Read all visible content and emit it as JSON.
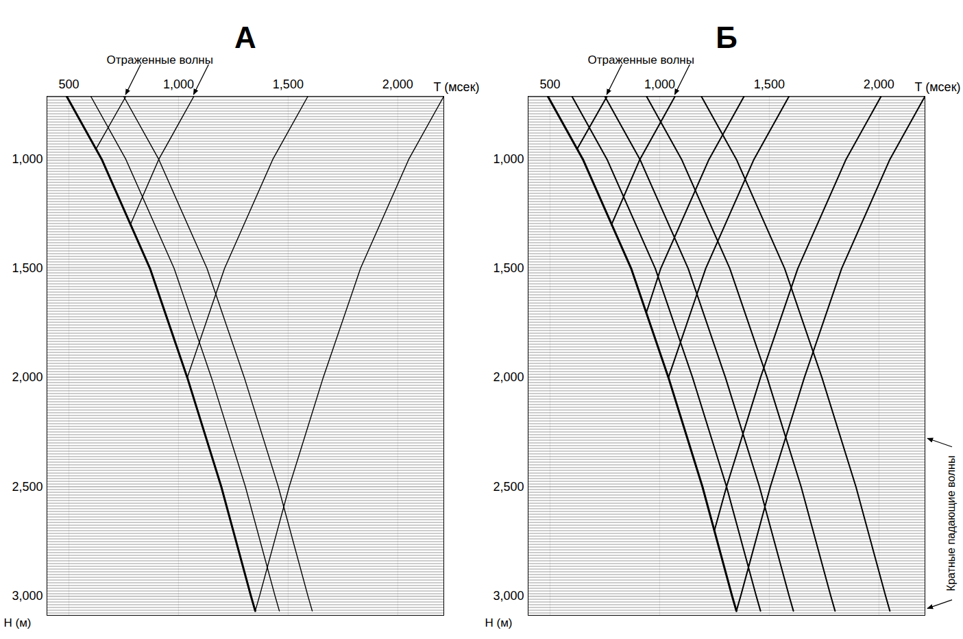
{
  "chart_data": [
    {
      "type": "line",
      "title": "А",
      "x_label": "T (мсек)",
      "y_label": "H (м)",
      "xlim": [
        400,
        2210
      ],
      "ylim": [
        711,
        3090
      ],
      "xticks": [
        500,
        1000,
        1500,
        2000
      ],
      "yticks": [
        1000,
        1500,
        2000,
        2500,
        3000
      ],
      "grid": true,
      "annotations": [
        {
          "text": "Отраженные волны",
          "x": [
            760,
            1070
          ]
        }
      ],
      "series": [
        {
          "color": "#000000",
          "x": [
            490,
            650,
            870,
            1040,
            1195,
            1330,
            1350
          ],
          "y": [
            711,
            1000,
            1500,
            2000,
            2500,
            3000,
            3070
          ]
        },
        {
          "color": "#000000",
          "x": [
            600,
            760,
            980,
            1150,
            1305,
            1440,
            1460
          ],
          "y": [
            711,
            1000,
            1500,
            2000,
            2500,
            3000,
            3070
          ]
        },
        {
          "color": "#000000",
          "x": [
            750,
            910,
            1130,
            1300,
            1455,
            1590,
            1610
          ],
          "y": [
            711,
            1000,
            1500,
            2000,
            2500,
            3000,
            3070
          ]
        },
        {
          "color": "#000000",
          "x": [
            625,
            760
          ],
          "y": [
            950,
            711
          ]
        },
        {
          "color": "#000000",
          "x": [
            780,
            910,
            1070
          ],
          "y": [
            1300,
            1000,
            711
          ]
        },
        {
          "color": "#000000",
          "x": [
            1040,
            1210,
            1430,
            1590
          ],
          "y": [
            2000,
            1500,
            1000,
            711
          ]
        },
        {
          "color": "#000000",
          "x": [
            1350,
            1370,
            1505,
            1660,
            1830,
            2050,
            2210
          ],
          "y": [
            3070,
            3000,
            2500,
            2000,
            1500,
            1000,
            711
          ]
        }
      ]
    },
    {
      "type": "line",
      "title": "Б",
      "x_label": "T (мсек)",
      "y_label": "H (м)",
      "xlim": [
        400,
        2210
      ],
      "ylim": [
        711,
        3090
      ],
      "xticks": [
        500,
        1000,
        1500,
        2000
      ],
      "yticks": [
        1000,
        1500,
        2000,
        2500,
        3000
      ],
      "grid": true,
      "annotations": [
        {
          "text": "Отраженные волны",
          "x": [
            760,
            1070
          ]
        },
        {
          "text": "Кратные падающие волны",
          "y": [
            2280,
            3060
          ]
        }
      ],
      "series": [
        {
          "color": "#000000",
          "x": [
            490,
            650,
            870,
            1040,
            1195,
            1330,
            1350
          ],
          "y": [
            711,
            1000,
            1500,
            2000,
            2500,
            3000,
            3070
          ]
        },
        {
          "color": "#000000",
          "x": [
            600,
            760,
            980,
            1150,
            1305,
            1440,
            1460
          ],
          "y": [
            711,
            1000,
            1500,
            2000,
            2500,
            3000,
            3070
          ]
        },
        {
          "color": "#000000",
          "x": [
            750,
            910,
            1130,
            1300,
            1455,
            1590,
            1610
          ],
          "y": [
            711,
            1000,
            1500,
            2000,
            2500,
            3000,
            3070
          ]
        },
        {
          "color": "#000000",
          "x": [
            940,
            1100,
            1320,
            1490,
            1645,
            1780,
            1800
          ],
          "y": [
            711,
            1000,
            1500,
            2000,
            2500,
            3000,
            3070
          ]
        },
        {
          "color": "#000000",
          "x": [
            1190,
            1350,
            1570,
            1740,
            1895,
            2030,
            2050
          ],
          "y": [
            711,
            1000,
            1500,
            2000,
            2500,
            3000,
            3070
          ]
        },
        {
          "color": "#000000",
          "x": [
            625,
            760
          ],
          "y": [
            950,
            711
          ]
        },
        {
          "color": "#000000",
          "x": [
            780,
            910,
            1070
          ],
          "y": [
            1300,
            1000,
            711
          ]
        },
        {
          "color": "#000000",
          "x": [
            940,
            1005,
            1225,
            1385
          ],
          "y": [
            1700,
            1500,
            1000,
            711
          ]
        },
        {
          "color": "#000000",
          "x": [
            1040,
            1210,
            1430,
            1590
          ],
          "y": [
            2000,
            1500,
            1000,
            711
          ]
        },
        {
          "color": "#000000",
          "x": [
            1250,
            1305,
            1460,
            1630,
            1850,
            2010
          ],
          "y": [
            2700,
            2500,
            2000,
            1500,
            1000,
            711
          ]
        },
        {
          "color": "#000000",
          "x": [
            1350,
            1370,
            1505,
            1660,
            1830,
            2050,
            2210
          ],
          "y": [
            3070,
            3000,
            2500,
            2000,
            1500,
            1000,
            711
          ]
        }
      ]
    }
  ]
}
